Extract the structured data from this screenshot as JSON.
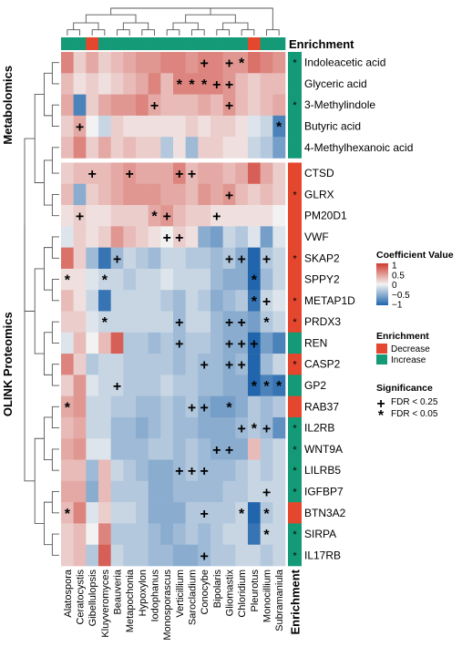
{
  "chart_data": {
    "type": "heatmap",
    "columns": [
      "Alatospora",
      "Ceratocystis",
      "Gibellulopsis",
      "Kluyveromyces",
      "Beauveria",
      "Metapochonia",
      "Hypoxylon",
      "Iodophanus",
      "Monosporascus",
      "Verticillium",
      "Sarocladium",
      "Conocybe",
      "Bipolaris",
      "Gliomastix",
      "Chloridium",
      "Pleurotus",
      "Monocillium",
      "Subramaniula"
    ],
    "column_enrichment": [
      "Increase",
      "Increase",
      "Decrease",
      "Increase",
      "Increase",
      "Increase",
      "Increase",
      "Increase",
      "Increase",
      "Increase",
      "Increase",
      "Increase",
      "Increase",
      "Increase",
      "Increase",
      "Decrease",
      "Increase",
      "Increase"
    ],
    "rows": [
      "Indoleacetic acid",
      "Glyceric acid",
      "3-Methylindole",
      "Butyric acid",
      "4-Methylhexanoic acid",
      "CTSD",
      "GLRX",
      "PM20D1",
      "VWF",
      "SKAP2",
      "SPPY2",
      "METAP1D",
      "PRDX3",
      "REN",
      "CASP2",
      "GP2",
      "RAB37",
      "IL2RB",
      "WNT9A",
      "LILRB5",
      "IGFBP7",
      "BTN3A2",
      "SIRPA",
      "IL17RB"
    ],
    "row_groups": [
      {
        "name": "Metabolomics",
        "count": 5
      },
      {
        "name": "OLINK Proteomics",
        "count": 19
      }
    ],
    "row_enrichment": [
      "Increase",
      "Increase",
      "Increase",
      "Increase",
      "Increase",
      "Decrease",
      "Decrease",
      "Decrease",
      "Decrease",
      "Decrease",
      "Decrease",
      "Decrease",
      "Decrease",
      "Increase",
      "Decrease",
      "Increase",
      "Decrease",
      "Increase",
      "Increase",
      "Increase",
      "Increase",
      "Decrease",
      "Increase",
      "Increase"
    ],
    "row_enrichment_mark": [
      1,
      0,
      1,
      0,
      0,
      0,
      1,
      0,
      0,
      1,
      0,
      1,
      1,
      0,
      1,
      0,
      0,
      1,
      1,
      1,
      1,
      0,
      1,
      1
    ],
    "values": [
      [
        0.6,
        0.2,
        0.4,
        0.2,
        0.3,
        0.4,
        0.5,
        0.5,
        0.6,
        0.6,
        0.5,
        0.6,
        0.6,
        0.5,
        0.5,
        0.7,
        0.6,
        0.5
      ],
      [
        0.3,
        0.1,
        0.2,
        0.1,
        0.2,
        0.3,
        0.4,
        0.6,
        0.3,
        0.6,
        0.6,
        0.6,
        0.6,
        0.5,
        0.3,
        0.2,
        0.3,
        0.3
      ],
      [
        0.4,
        -0.8,
        0.2,
        0.4,
        0.5,
        0.5,
        0.6,
        0.4,
        0.3,
        0.3,
        0.3,
        0.4,
        0.3,
        0.5,
        0.3,
        0.2,
        0.3,
        0.4
      ],
      [
        0.2,
        0.4,
        0.0,
        -0.2,
        0.2,
        0.1,
        0.1,
        0.1,
        0.1,
        0.1,
        0.2,
        0.1,
        0.2,
        0.2,
        0.1,
        -0.1,
        -0.2,
        -0.8
      ],
      [
        0.3,
        0.6,
        0.2,
        0.4,
        0.2,
        0.3,
        0.2,
        0.2,
        -0.3,
        0.1,
        -0.4,
        0.2,
        0.2,
        0.1,
        0.1,
        -0.2,
        -0.3,
        -0.6
      ],
      [
        0.2,
        0.3,
        0.3,
        0.3,
        0.4,
        0.5,
        0.4,
        0.4,
        0.4,
        0.6,
        0.3,
        0.4,
        0.4,
        0.3,
        0.4,
        0.8,
        0.4,
        0.2
      ],
      [
        0.3,
        -0.5,
        0.2,
        0.3,
        0.4,
        0.5,
        0.5,
        0.5,
        0.4,
        0.4,
        0.3,
        0.5,
        0.4,
        0.5,
        0.3,
        0.2,
        0.3,
        0.2
      ],
      [
        0.1,
        0.2,
        0.1,
        0.1,
        0.2,
        0.2,
        0.2,
        0.4,
        0.5,
        0.3,
        0.2,
        0.2,
        0.1,
        0.1,
        0.1,
        0.1,
        0.1,
        0.0
      ],
      [
        -0.1,
        0.2,
        0.1,
        0.2,
        0.5,
        0.3,
        0.2,
        0.1,
        0.0,
        0.2,
        0.1,
        -0.5,
        -0.6,
        -0.2,
        -0.3,
        -0.1,
        -0.6,
        -0.1
      ],
      [
        0.7,
        0.2,
        -0.4,
        -0.9,
        -0.4,
        -0.2,
        -0.3,
        -0.4,
        -0.2,
        -0.2,
        -0.3,
        -0.3,
        -0.4,
        -0.3,
        -0.5,
        -1.0,
        -0.3,
        -0.2
      ],
      [
        0.1,
        0.1,
        -0.1,
        -0.2,
        -0.2,
        -0.3,
        -0.2,
        -0.2,
        -0.1,
        -0.2,
        -0.2,
        -0.2,
        -0.4,
        -0.5,
        -0.5,
        -1.0,
        -0.4,
        -0.2
      ],
      [
        0.3,
        0.1,
        -0.2,
        -0.9,
        -0.2,
        -0.2,
        -0.2,
        -0.2,
        -0.3,
        -0.4,
        -0.2,
        -0.3,
        -0.5,
        -0.4,
        -0.3,
        -0.9,
        -0.2,
        -0.1
      ],
      [
        0.2,
        0.2,
        -0.1,
        -0.2,
        -0.2,
        -0.2,
        -0.2,
        -0.2,
        -0.2,
        -0.4,
        -0.2,
        -0.2,
        -0.4,
        -0.5,
        -0.5,
        -0.6,
        -0.3,
        -0.2
      ],
      [
        -0.1,
        0.3,
        0.0,
        0.3,
        0.8,
        -0.3,
        -0.3,
        -0.4,
        -0.3,
        -0.4,
        -0.3,
        -0.3,
        -0.4,
        -0.5,
        -0.5,
        -1.0,
        -0.6,
        -0.8
      ],
      [
        0.6,
        0.2,
        -0.3,
        -0.2,
        -0.2,
        -0.3,
        -0.3,
        -0.3,
        -0.3,
        -0.4,
        -0.3,
        -0.4,
        -0.4,
        -0.5,
        -0.4,
        -1.0,
        -0.4,
        -0.2
      ],
      [
        0.2,
        0.5,
        -0.1,
        -0.2,
        -0.2,
        -0.3,
        -0.3,
        -0.3,
        -0.2,
        -0.3,
        -0.3,
        -0.4,
        -0.4,
        -0.5,
        -0.5,
        -1.0,
        -0.8,
        -0.9
      ],
      [
        0.4,
        0.5,
        -0.2,
        -0.2,
        -0.3,
        -0.3,
        -0.4,
        -0.4,
        -0.3,
        -0.4,
        -0.3,
        -0.5,
        -0.6,
        -0.6,
        -0.5,
        -0.3,
        -0.4,
        -0.3
      ],
      [
        0.3,
        0.4,
        -0.2,
        -0.2,
        -0.4,
        -0.4,
        -0.5,
        -0.4,
        -0.3,
        -0.4,
        -0.4,
        -0.5,
        -0.5,
        -0.5,
        -0.4,
        -0.3,
        -0.4,
        -0.7
      ],
      [
        0.4,
        0.5,
        -0.1,
        -0.1,
        -0.4,
        -0.4,
        -0.4,
        -0.3,
        -0.3,
        -0.4,
        -0.3,
        -0.4,
        -0.5,
        -0.5,
        -0.5,
        0.3,
        -0.3,
        -0.2
      ],
      [
        0.3,
        0.3,
        -0.4,
        0.3,
        -0.2,
        -0.3,
        -0.4,
        -0.5,
        -0.5,
        -0.4,
        -0.3,
        -0.4,
        -0.4,
        -0.4,
        -0.3,
        -0.2,
        -0.3,
        -0.2
      ],
      [
        0.4,
        0.4,
        -0.5,
        0.3,
        -0.3,
        -0.3,
        -0.3,
        -0.5,
        -0.5,
        -0.4,
        -0.4,
        -0.4,
        -0.4,
        -0.3,
        -0.3,
        -0.2,
        -0.2,
        -0.2
      ],
      [
        0.3,
        0.6,
        -0.1,
        0.2,
        -0.2,
        -0.2,
        -0.3,
        -0.5,
        -0.5,
        -0.5,
        -0.3,
        -0.3,
        -0.3,
        -0.3,
        -0.2,
        -1.0,
        -0.3,
        -0.2
      ],
      [
        0.2,
        0.3,
        0.0,
        0.6,
        -0.3,
        -0.3,
        -0.3,
        -0.4,
        -0.5,
        -0.4,
        -0.3,
        -0.4,
        -0.3,
        -0.2,
        -0.2,
        -0.9,
        -0.2,
        -0.2
      ],
      [
        0.2,
        0.3,
        -0.3,
        0.8,
        -0.2,
        -0.3,
        -0.3,
        -0.4,
        -0.4,
        -0.5,
        -0.5,
        -0.4,
        -0.3,
        -0.3,
        -0.2,
        -0.2,
        -0.3,
        -0.2
      ]
    ],
    "significance": [
      "...........P.PS...",
      ".........SSSPP....",
      ".......P.....P....",
      ".P...............S",
      "..................",
      "..P..P...PP.......",
      ".............P....",
      ".P.....SP...P.....",
      "........PP........",
      "....P........PP.P.",
      "S..S...........S..",
      "...............SP.",
      "...S.....P...PP.S.",
      ".........P...PPP..",
      "...........P.PP...",
      "....P..........SSS",
      "S.........PP.S....",
      "..............PSP.",
      "............PP....",
      ".........PPP......",
      "................P.",
      "S..........P..S.S.",
      "................S.",
      "...........P......"
    ],
    "significance_note": "P = FDR < 0.25, S = FDR < 0.05",
    "color_scale": {
      "min": -1,
      "max": 1,
      "low": "#2166ac",
      "mid": "#f2f2f2",
      "high": "#cf3b30"
    },
    "enrichment_colors": {
      "Decrease": "#e4472d",
      "Increase": "#149a76"
    },
    "legend": {
      "coef_title": "Coefficient Value",
      "coef_ticks": [
        "1",
        "0.5",
        "0",
        "−0.5",
        "−1"
      ],
      "enrich_title": "Enrichment",
      "enrich_items": [
        "Decrease",
        "Increase"
      ],
      "sig_title": "Significance",
      "sig_items": [
        "FDR < 0.25",
        "FDR < 0.05"
      ],
      "placement": "right"
    },
    "enrichment_col_label": "Enrichment",
    "enrichment_row_label": "Enrichment"
  }
}
